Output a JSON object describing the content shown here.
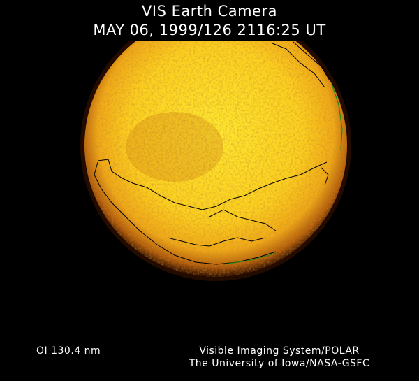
{
  "header": {
    "title": "VIS Earth Camera",
    "timestamp": "MAY 06, 1999/126 2116:25 UT"
  },
  "footer": {
    "filter": "OI  130.4 nm",
    "instrument": "Visible Imaging System/POLAR",
    "institution": "The University of Iowa/NASA-GSFC"
  },
  "image": {
    "subject": "earth-disk-uv-emission",
    "colors": {
      "core": "#ffe830",
      "mid": "#f0a818",
      "limb": "#8a3a08",
      "background": "#000000",
      "coastline": "#000000",
      "terminator": "#1a8a1a"
    }
  }
}
